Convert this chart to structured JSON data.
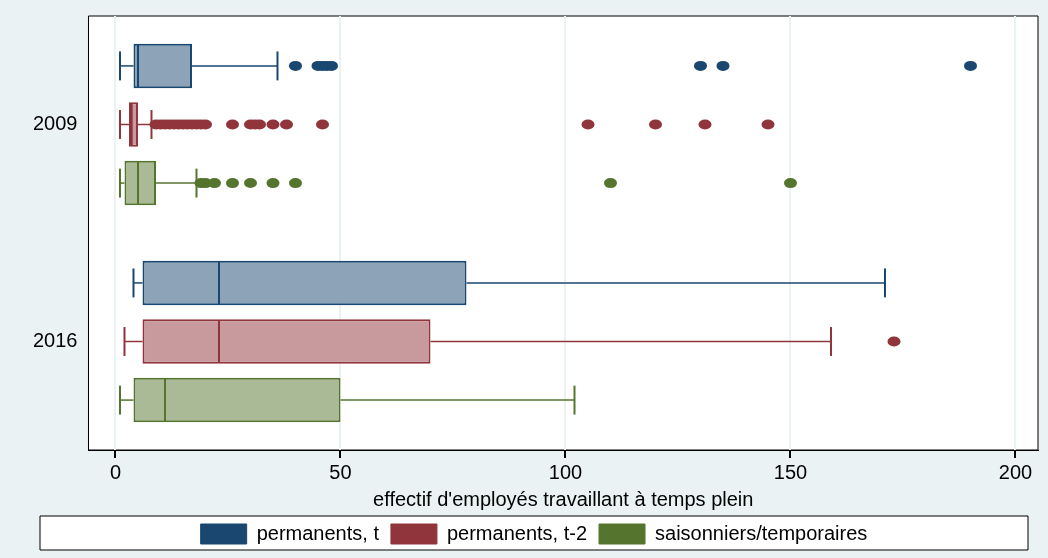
{
  "chart_data": {
    "type": "box",
    "orientation": "horizontal",
    "xlabel": "effectif d'employés travaillant à temps plein",
    "categories": [
      "2009",
      "2016"
    ],
    "series": [
      {
        "name": "permanents, t",
        "color": "#1a476f",
        "boxes": [
          {
            "low": 1,
            "q1": 4,
            "median": 5,
            "q3": 17,
            "high": 36,
            "outliers": [
              40,
              45,
              46,
              47,
              48,
              130,
              135,
              190
            ]
          },
          {
            "low": 4,
            "q1": 6,
            "median": 23,
            "q3": 78,
            "high": 171
          }
        ]
      },
      {
        "name": "permanents, t-2",
        "color": "#90353b",
        "boxes": [
          {
            "low": 1,
            "q1": 3,
            "median": 3.6,
            "q3": 5,
            "high": 8,
            "outliers": [
              9,
              10,
              11,
              12,
              13,
              14,
              15,
              16,
              17,
              18,
              19,
              20,
              26,
              30,
              31,
              32,
              35,
              38,
              46,
              105,
              120,
              131,
              145
            ]
          },
          {
            "low": 2,
            "q1": 6,
            "median": 23,
            "q3": 70,
            "high": 159,
            "outliers": [
              173
            ]
          }
        ]
      },
      {
        "name": "saisonniers/temporaires",
        "color": "#55752f",
        "boxes": [
          {
            "low": 1,
            "q1": 2,
            "median": 5,
            "q3": 9,
            "high": 18,
            "outliers": [
              19,
              20,
              22,
              26,
              30,
              35,
              40,
              110,
              150
            ]
          },
          {
            "low": 1,
            "q1": 4,
            "median": 11,
            "q3": 50,
            "high": 102
          }
        ]
      }
    ],
    "xlim": [
      -6,
      205
    ],
    "xticks": [
      0,
      50,
      100,
      150,
      200
    ],
    "grid": "x",
    "legend": "bottom",
    "marker": "circle"
  }
}
